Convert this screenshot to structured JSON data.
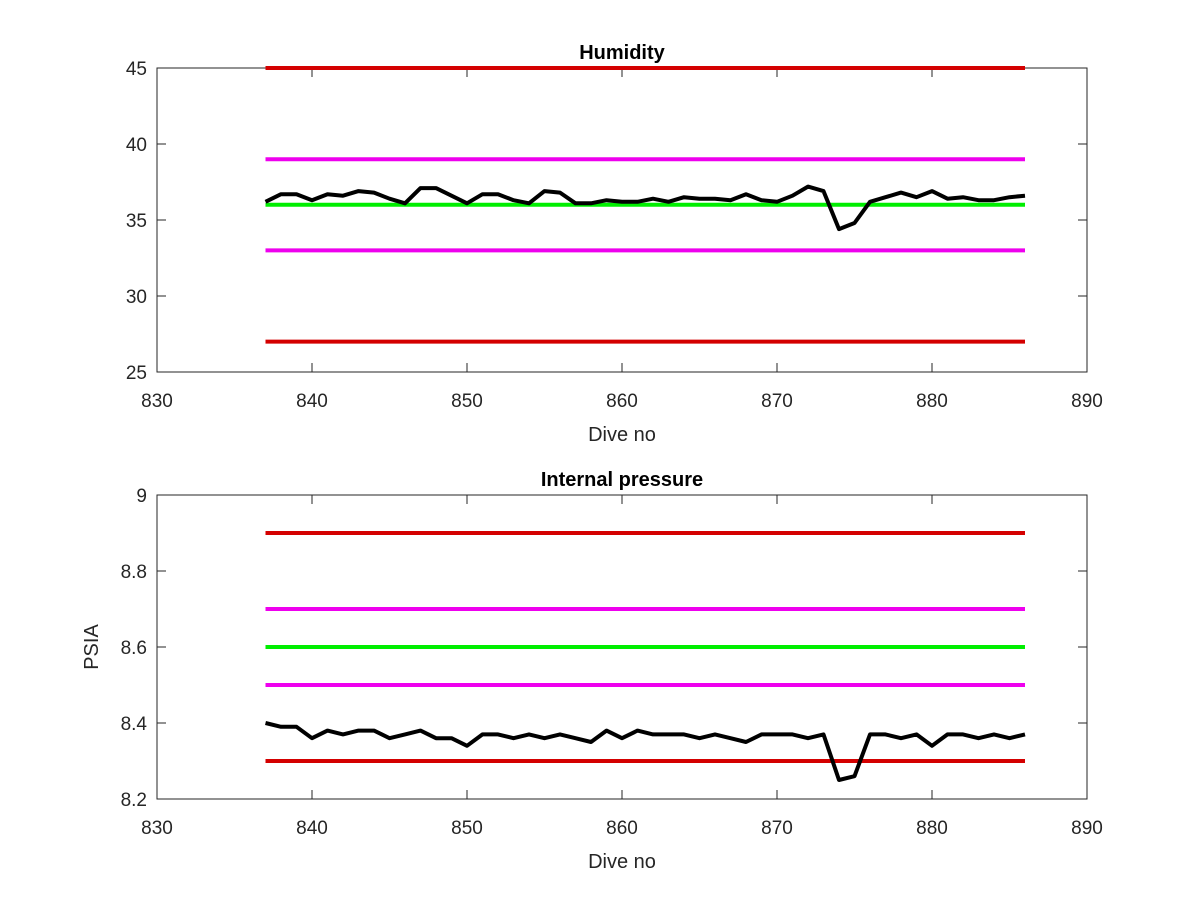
{
  "chart_data": [
    {
      "type": "line",
      "title": "Humidity",
      "xlabel": "Dive no",
      "ylabel": "",
      "xlim": [
        830,
        890
      ],
      "ylim": [
        25,
        45
      ],
      "xticks": [
        830,
        840,
        850,
        860,
        870,
        880,
        890
      ],
      "yticks": [
        25,
        30,
        35,
        40,
        45
      ],
      "grid": false,
      "box": true,
      "series": [
        {
          "color": "#d40000",
          "x": [
            837,
            886
          ],
          "y": [
            45,
            45
          ]
        },
        {
          "color": "#ee00ee",
          "x": [
            837,
            886
          ],
          "y": [
            39,
            39
          ]
        },
        {
          "color": "#00ee00",
          "x": [
            837,
            886
          ],
          "y": [
            36,
            36
          ]
        },
        {
          "color": "#ee00ee",
          "x": [
            837,
            886
          ],
          "y": [
            33,
            33
          ]
        },
        {
          "color": "#d40000",
          "x": [
            837,
            886
          ],
          "y": [
            27,
            27
          ]
        },
        {
          "color": "#000000",
          "x": [
            837,
            838,
            839,
            840,
            841,
            842,
            843,
            844,
            845,
            846,
            847,
            848,
            849,
            850,
            851,
            852,
            853,
            854,
            855,
            856,
            857,
            858,
            859,
            860,
            861,
            862,
            863,
            864,
            865,
            866,
            867,
            868,
            869,
            870,
            871,
            872,
            873,
            874,
            875,
            876,
            877,
            878,
            879,
            880,
            881,
            882,
            883,
            884,
            885,
            886
          ],
          "y": [
            36.2,
            36.7,
            36.7,
            36.3,
            36.7,
            36.6,
            36.9,
            36.8,
            36.4,
            36.1,
            37.1,
            37.1,
            36.6,
            36.1,
            36.7,
            36.7,
            36.3,
            36.1,
            36.9,
            36.8,
            36.1,
            36.1,
            36.3,
            36.2,
            36.2,
            36.4,
            36.2,
            36.5,
            36.4,
            36.4,
            36.3,
            36.7,
            36.3,
            36.2,
            36.6,
            37.2,
            36.9,
            34.4,
            34.8,
            36.2,
            36.5,
            36.8,
            36.5,
            36.9,
            36.4,
            36.5,
            36.3,
            36.3,
            36.5,
            36.6
          ]
        }
      ]
    },
    {
      "type": "line",
      "title": "Internal pressure",
      "xlabel": "Dive no",
      "ylabel": "PSIA",
      "xlim": [
        830,
        890
      ],
      "ylim": [
        8.2,
        9
      ],
      "xticks": [
        830,
        840,
        850,
        860,
        870,
        880,
        890
      ],
      "yticks": [
        8.2,
        8.4,
        8.6,
        8.8,
        9
      ],
      "grid": false,
      "box": true,
      "series": [
        {
          "color": "#d40000",
          "x": [
            837,
            886
          ],
          "y": [
            8.9,
            8.9
          ]
        },
        {
          "color": "#ee00ee",
          "x": [
            837,
            886
          ],
          "y": [
            8.7,
            8.7
          ]
        },
        {
          "color": "#00ee00",
          "x": [
            837,
            886
          ],
          "y": [
            8.6,
            8.6
          ]
        },
        {
          "color": "#ee00ee",
          "x": [
            837,
            886
          ],
          "y": [
            8.5,
            8.5
          ]
        },
        {
          "color": "#d40000",
          "x": [
            837,
            886
          ],
          "y": [
            8.3,
            8.3
          ]
        },
        {
          "color": "#000000",
          "x": [
            837,
            838,
            839,
            840,
            841,
            842,
            843,
            844,
            845,
            846,
            847,
            848,
            849,
            850,
            851,
            852,
            853,
            854,
            855,
            856,
            857,
            858,
            859,
            860,
            861,
            862,
            863,
            864,
            865,
            866,
            867,
            868,
            869,
            870,
            871,
            872,
            873,
            874,
            875,
            876,
            877,
            878,
            879,
            880,
            881,
            882,
            883,
            884,
            885,
            886
          ],
          "y": [
            8.4,
            8.39,
            8.39,
            8.36,
            8.38,
            8.37,
            8.38,
            8.38,
            8.36,
            8.37,
            8.38,
            8.36,
            8.36,
            8.34,
            8.37,
            8.37,
            8.36,
            8.37,
            8.36,
            8.37,
            8.36,
            8.35,
            8.38,
            8.36,
            8.38,
            8.37,
            8.37,
            8.37,
            8.36,
            8.37,
            8.36,
            8.35,
            8.37,
            8.37,
            8.37,
            8.36,
            8.37,
            8.25,
            8.26,
            8.37,
            8.37,
            8.36,
            8.37,
            8.34,
            8.37,
            8.37,
            8.36,
            8.37,
            8.36,
            8.37
          ]
        }
      ]
    }
  ]
}
